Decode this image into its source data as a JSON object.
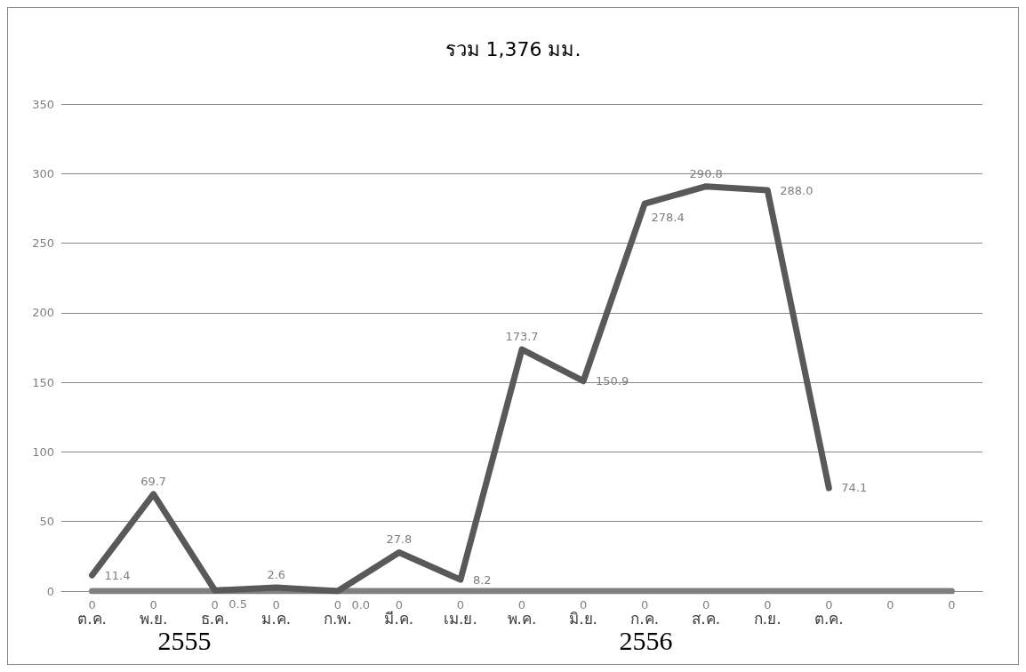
{
  "chart_data": {
    "type": "line",
    "title": "รวม 1,376 มม.",
    "categories": [
      "ต.ค.",
      "พ.ย.",
      "ธ.ค.",
      "ม.ค.",
      "ก.พ.",
      "มี.ค.",
      "เม.ย.",
      "พ.ค.",
      "มิ.ย.",
      "ก.ค.",
      "ส.ค.",
      "ก.ย.",
      "ต.ค.",
      null,
      null
    ],
    "series": [
      {
        "color": "#595959",
        "values": [
          11.4,
          69.7,
          0.5,
          2.6,
          0.0,
          27.8,
          8.2,
          173.7,
          150.9,
          278.4,
          290.8,
          288.0,
          74.1,
          null,
          null
        ],
        "value_labels": [
          "11.4",
          "69.7",
          "0.5",
          "2.6",
          "0.0",
          "27.8",
          "8.2",
          "173.7",
          "150.9",
          "278.4",
          "290.8",
          "288.0",
          "74.1",
          null,
          null
        ]
      },
      {
        "color": "#808080",
        "values": [
          0,
          0,
          0,
          0,
          0,
          0,
          0,
          0,
          0,
          0,
          0,
          0,
          0,
          0,
          0
        ],
        "value_labels": [
          "0",
          "0",
          "0",
          "0",
          "0",
          "0",
          "0",
          "0",
          "0",
          "0",
          "0",
          "0",
          "0",
          "0",
          "0"
        ]
      }
    ],
    "ylim": [
      0,
      350
    ],
    "yticks": [
      0,
      50,
      100,
      150,
      200,
      250,
      300,
      350
    ],
    "grid": "y",
    "marker": "none",
    "line_style": "solid",
    "annotations": [
      "2555",
      "2556"
    ]
  }
}
